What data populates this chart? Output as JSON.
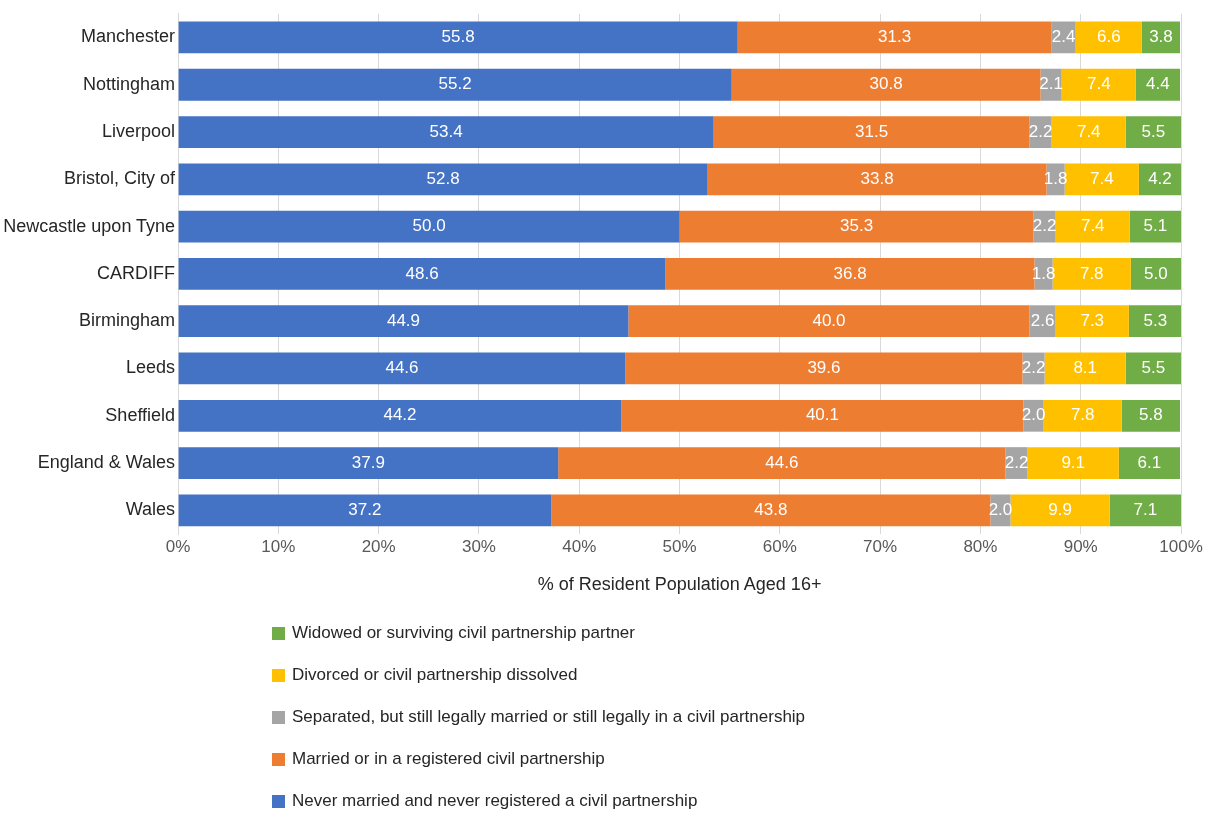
{
  "chart_data": {
    "type": "bar",
    "orientation": "horizontal",
    "stacked": true,
    "grid": "x",
    "legend": "bottom",
    "xlabel": "% of Resident Population Aged 16+",
    "categories": [
      "Manchester",
      "Nottingham",
      "Liverpool",
      "Bristol, City of",
      "Newcastle upon Tyne",
      "CARDIFF",
      "Birmingham",
      "Leeds",
      "Sheffield",
      "England & Wales",
      "Wales"
    ],
    "xlim": [
      0,
      100
    ],
    "xticks": [
      {
        "value": 0,
        "label": "0%"
      },
      {
        "value": 10,
        "label": "10%"
      },
      {
        "value": 20,
        "label": "20%"
      },
      {
        "value": 30,
        "label": "30%"
      },
      {
        "value": 40,
        "label": "40%"
      },
      {
        "value": 50,
        "label": "50%"
      },
      {
        "value": 60,
        "label": "60%"
      },
      {
        "value": 70,
        "label": "70%"
      },
      {
        "value": 80,
        "label": "80%"
      },
      {
        "value": 90,
        "label": "90%"
      },
      {
        "value": 100,
        "label": "100%"
      }
    ],
    "series": [
      {
        "name": "Never married and never registered a civil partnership",
        "color": "#4472c4",
        "values": [
          55.8,
          55.2,
          53.4,
          52.8,
          50.0,
          48.6,
          44.9,
          44.6,
          44.2,
          37.9,
          37.2
        ],
        "value_labels": [
          "55.8",
          "55.2",
          "53.4",
          "52.8",
          "50.0",
          "48.6",
          "44.9",
          "44.6",
          "44.2",
          "37.9",
          "37.2"
        ]
      },
      {
        "name": "Married or in a registered civil partnership",
        "color": "#ed7d31",
        "values": [
          31.3,
          30.8,
          31.5,
          33.8,
          35.3,
          36.8,
          40.0,
          39.6,
          40.1,
          44.6,
          43.8
        ],
        "value_labels": [
          "31.3",
          "30.8",
          "31.5",
          "33.8",
          "35.3",
          "36.8",
          "40.0",
          "39.6",
          "40.1",
          "44.6",
          "43.8"
        ]
      },
      {
        "name": "Separated, but still legally married or still legally in a civil partnership",
        "color": "#a5a5a5",
        "values": [
          2.4,
          2.1,
          2.2,
          1.8,
          2.2,
          1.8,
          2.6,
          2.2,
          2.0,
          2.2,
          2.0
        ],
        "value_labels": [
          "2.4",
          "2.1",
          "2.2",
          "1.8",
          "2.2",
          "1.8",
          "2.6",
          "2.2",
          "2.0",
          "2.2",
          "2.0"
        ]
      },
      {
        "name": "Divorced or civil partnership dissolved",
        "color": "#ffc000",
        "values": [
          6.6,
          7.4,
          7.4,
          7.4,
          7.4,
          7.8,
          7.3,
          8.1,
          7.8,
          9.1,
          9.9
        ],
        "value_labels": [
          "6.6",
          "7.4",
          "7.4",
          "7.4",
          "7.4",
          "7.8",
          "7.3",
          "8.1",
          "7.8",
          "9.1",
          "9.9"
        ]
      },
      {
        "name": "Widowed or surviving civil partnership partner",
        "color": "#70ad47",
        "values": [
          3.8,
          4.4,
          5.5,
          4.2,
          5.1,
          5.0,
          5.3,
          5.5,
          5.8,
          6.1,
          7.1
        ],
        "value_labels": [
          "3.8",
          "4.4",
          "5.5",
          "4.2",
          "5.1",
          "5.0",
          "5.3",
          "5.5",
          "5.8",
          "6.1",
          "7.1"
        ]
      }
    ]
  }
}
